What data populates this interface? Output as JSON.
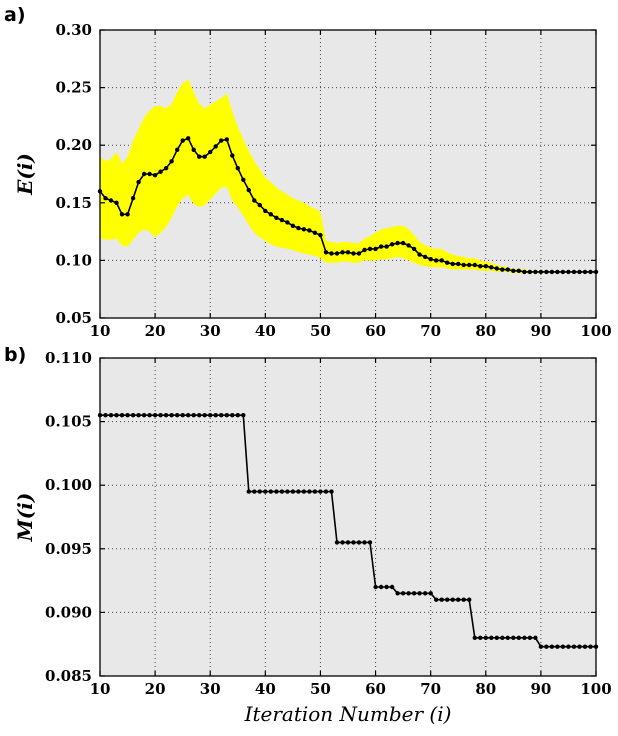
{
  "figure": {
    "panel_a_label": "a)",
    "panel_b_label": "b)",
    "x_axis_label": "Iteration Number (i)"
  },
  "colors": {
    "plot_bg": "#e8e8e8",
    "grid": "#444444",
    "line": "#000000",
    "band": "#ffff00",
    "frame": "#000000",
    "text": "#000000"
  },
  "chart_data": [
    {
      "type": "line",
      "title": "",
      "xlabel": "",
      "ylabel": "E(i)",
      "xlim": [
        10,
        100
      ],
      "ylim": [
        0.05,
        0.3
      ],
      "xticks": [
        10,
        20,
        30,
        40,
        50,
        60,
        70,
        80,
        90,
        100
      ],
      "xticklabels": [
        "10",
        "20",
        "30",
        "40",
        "50",
        "60",
        "70",
        "80",
        "90",
        "100"
      ],
      "yticks": [
        0.05,
        0.1,
        0.15,
        0.2,
        0.25,
        0.3
      ],
      "yticklabels": [
        "0.05",
        "0.10",
        "0.15",
        "0.20",
        "0.25",
        "0.30"
      ],
      "grid": true,
      "legend": "none",
      "marker": "circle",
      "x": [
        10,
        11,
        12,
        13,
        14,
        15,
        16,
        17,
        18,
        19,
        20,
        21,
        22,
        23,
        24,
        25,
        26,
        27,
        28,
        29,
        30,
        31,
        32,
        33,
        34,
        35,
        36,
        37,
        38,
        39,
        40,
        41,
        42,
        43,
        44,
        45,
        46,
        47,
        48,
        49,
        50,
        51,
        52,
        53,
        54,
        55,
        56,
        57,
        58,
        59,
        60,
        61,
        62,
        63,
        64,
        65,
        66,
        67,
        68,
        69,
        70,
        71,
        72,
        73,
        74,
        75,
        76,
        77,
        78,
        79,
        80,
        81,
        82,
        83,
        84,
        85,
        86,
        87,
        88,
        89,
        90,
        91,
        92,
        93,
        94,
        95,
        96,
        97,
        98,
        99,
        100
      ],
      "series": [
        {
          "name": "E(i)",
          "values": [
            0.16,
            0.154,
            0.152,
            0.15,
            0.14,
            0.14,
            0.154,
            0.168,
            0.175,
            0.175,
            0.174,
            0.177,
            0.18,
            0.186,
            0.196,
            0.204,
            0.206,
            0.196,
            0.19,
            0.19,
            0.194,
            0.199,
            0.204,
            0.205,
            0.191,
            0.18,
            0.17,
            0.161,
            0.152,
            0.148,
            0.143,
            0.14,
            0.137,
            0.135,
            0.133,
            0.13,
            0.128,
            0.127,
            0.126,
            0.124,
            0.122,
            0.107,
            0.106,
            0.106,
            0.107,
            0.107,
            0.106,
            0.106,
            0.109,
            0.11,
            0.11,
            0.112,
            0.112,
            0.114,
            0.115,
            0.115,
            0.113,
            0.11,
            0.105,
            0.103,
            0.101,
            0.1,
            0.1,
            0.098,
            0.097,
            0.097,
            0.096,
            0.096,
            0.096,
            0.095,
            0.095,
            0.094,
            0.093,
            0.092,
            0.092,
            0.091,
            0.091,
            0.09,
            0.09,
            0.09,
            0.09,
            0.09,
            0.09,
            0.09,
            0.09,
            0.09,
            0.09,
            0.09,
            0.09,
            0.09,
            0.09
          ]
        }
      ],
      "band": {
        "name": "uncertainty-band",
        "color": "#ffff00",
        "lower": [
          0.12,
          0.118,
          0.118,
          0.119,
          0.113,
          0.112,
          0.118,
          0.124,
          0.127,
          0.125,
          0.12,
          0.124,
          0.129,
          0.137,
          0.147,
          0.154,
          0.157,
          0.149,
          0.146,
          0.148,
          0.153,
          0.158,
          0.163,
          0.164,
          0.152,
          0.146,
          0.139,
          0.131,
          0.124,
          0.12,
          0.117,
          0.114,
          0.112,
          0.111,
          0.11,
          0.109,
          0.107,
          0.106,
          0.105,
          0.104,
          0.102,
          0.098,
          0.098,
          0.098,
          0.099,
          0.099,
          0.098,
          0.098,
          0.1,
          0.1,
          0.1,
          0.101,
          0.101,
          0.102,
          0.103,
          0.102,
          0.1,
          0.098,
          0.096,
          0.095,
          0.094,
          0.094,
          0.094,
          0.093,
          0.092,
          0.092,
          0.092,
          0.092,
          0.092,
          0.091,
          0.091,
          0.091,
          0.09,
          0.09,
          0.09,
          0.089,
          0.089,
          0.089,
          0.089,
          0.089,
          0.089,
          0.089,
          0.089,
          0.09,
          0.09,
          0.09,
          0.09,
          0.09,
          0.09,
          0.09,
          0.09
        ],
        "upper": [
          0.19,
          0.186,
          0.188,
          0.194,
          0.184,
          0.19,
          0.204,
          0.214,
          0.224,
          0.23,
          0.234,
          0.234,
          0.232,
          0.236,
          0.246,
          0.254,
          0.257,
          0.246,
          0.236,
          0.232,
          0.235,
          0.238,
          0.241,
          0.245,
          0.229,
          0.216,
          0.205,
          0.195,
          0.186,
          0.179,
          0.172,
          0.168,
          0.163,
          0.16,
          0.157,
          0.154,
          0.152,
          0.15,
          0.147,
          0.145,
          0.142,
          0.117,
          0.116,
          0.115,
          0.116,
          0.116,
          0.115,
          0.115,
          0.119,
          0.121,
          0.124,
          0.127,
          0.128,
          0.129,
          0.13,
          0.13,
          0.127,
          0.122,
          0.116,
          0.113,
          0.111,
          0.11,
          0.11,
          0.107,
          0.105,
          0.104,
          0.103,
          0.102,
          0.102,
          0.1,
          0.099,
          0.098,
          0.096,
          0.095,
          0.094,
          0.093,
          0.093,
          0.092,
          0.091,
          0.091,
          0.091,
          0.091,
          0.091,
          0.09,
          0.09,
          0.09,
          0.09,
          0.09,
          0.09,
          0.09,
          0.09
        ]
      }
    },
    {
      "type": "line",
      "title": "",
      "xlabel": "Iteration Number (i)",
      "ylabel": "M(i)",
      "xlim": [
        10,
        100
      ],
      "ylim": [
        0.085,
        0.11
      ],
      "xticks": [
        10,
        20,
        30,
        40,
        50,
        60,
        70,
        80,
        90,
        100
      ],
      "xticklabels": [
        "10",
        "20",
        "30",
        "40",
        "50",
        "60",
        "70",
        "80",
        "90",
        "100"
      ],
      "yticks": [
        0.085,
        0.09,
        0.095,
        0.1,
        0.105,
        0.11
      ],
      "yticklabels": [
        "0.085",
        "0.090",
        "0.095",
        "0.100",
        "0.105",
        "0.110"
      ],
      "grid": true,
      "legend": "none",
      "marker": "circle",
      "x": [
        10,
        11,
        12,
        13,
        14,
        15,
        16,
        17,
        18,
        19,
        20,
        21,
        22,
        23,
        24,
        25,
        26,
        27,
        28,
        29,
        30,
        31,
        32,
        33,
        34,
        35,
        36,
        37,
        38,
        39,
        40,
        41,
        42,
        43,
        44,
        45,
        46,
        47,
        48,
        49,
        50,
        51,
        52,
        53,
        54,
        55,
        56,
        57,
        58,
        59,
        60,
        61,
        62,
        63,
        64,
        65,
        66,
        67,
        68,
        69,
        70,
        71,
        72,
        73,
        74,
        75,
        76,
        77,
        78,
        79,
        80,
        81,
        82,
        83,
        84,
        85,
        86,
        87,
        88,
        89,
        90,
        91,
        92,
        93,
        94,
        95,
        96,
        97,
        98,
        99,
        100
      ],
      "series": [
        {
          "name": "M(i)",
          "values": [
            0.1055,
            0.1055,
            0.1055,
            0.1055,
            0.1055,
            0.1055,
            0.1055,
            0.1055,
            0.1055,
            0.1055,
            0.1055,
            0.1055,
            0.1055,
            0.1055,
            0.1055,
            0.1055,
            0.1055,
            0.1055,
            0.1055,
            0.1055,
            0.1055,
            0.1055,
            0.1055,
            0.1055,
            0.1055,
            0.1055,
            0.1055,
            0.0995,
            0.0995,
            0.0995,
            0.0995,
            0.0995,
            0.0995,
            0.0995,
            0.0995,
            0.0995,
            0.0995,
            0.0995,
            0.0995,
            0.0995,
            0.0995,
            0.0995,
            0.0995,
            0.0955,
            0.0955,
            0.0955,
            0.0955,
            0.0955,
            0.0955,
            0.0955,
            0.092,
            0.092,
            0.092,
            0.092,
            0.0915,
            0.0915,
            0.0915,
            0.0915,
            0.0915,
            0.0915,
            0.0915,
            0.091,
            0.091,
            0.091,
            0.091,
            0.091,
            0.091,
            0.091,
            0.088,
            0.088,
            0.088,
            0.088,
            0.088,
            0.088,
            0.088,
            0.088,
            0.088,
            0.088,
            0.088,
            0.088,
            0.0873,
            0.0873,
            0.0873,
            0.0873,
            0.0873,
            0.0873,
            0.0873,
            0.0873,
            0.0873,
            0.0873,
            0.0873
          ]
        }
      ]
    }
  ]
}
